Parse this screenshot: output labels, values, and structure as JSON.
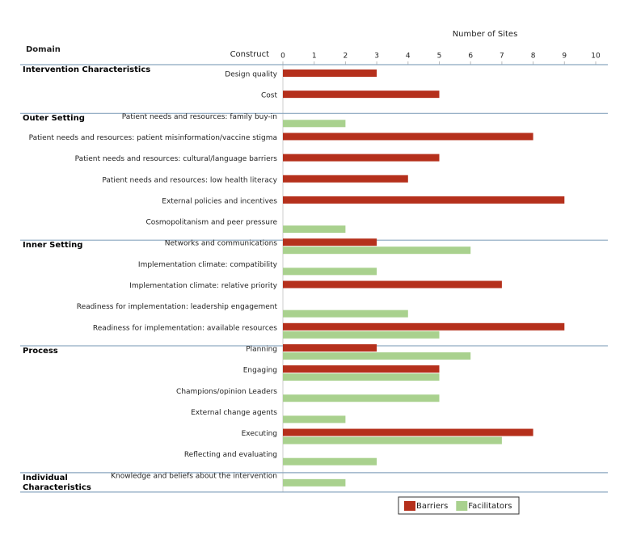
{
  "chart_data": {
    "type": "bar",
    "orientation": "horizontal",
    "title": "Number of Sites",
    "domain_header": "Domain",
    "construct_header": "Construct",
    "domains": [
      {
        "name": "Intervention Characteristics",
        "categories": [
          "Design quality",
          "Cost"
        ]
      },
      {
        "name": "Outer Setting",
        "categories": [
          "Patient needs and resources: family buy-in",
          "Patient needs and resources: patient misinformation/vaccine stigma",
          "Patient needs and resources: cultural/language barriers",
          "Patient needs and resources: low health literacy",
          "External policies and incentives",
          "Cosmopolitanism and peer pressure"
        ]
      },
      {
        "name": "Inner Setting",
        "categories": [
          "Networks and communications",
          "Implementation climate: compatibility",
          "Implementation climate: relative priority",
          "Readiness for implementation: leadership engagement",
          "Readiness for implementation: available resources"
        ]
      },
      {
        "name": "Process",
        "categories": [
          "Planning",
          "Engaging",
          "Champions/opinion Leaders",
          "External change agents",
          "Executing",
          "Reflecting and evaluating"
        ]
      },
      {
        "name": "Individual Characteristics",
        "categories": [
          "Knowledge and beliefs about the intervention"
        ]
      }
    ],
    "series": [
      {
        "name": "Barriers",
        "color": "#b5301c",
        "values": [
          3,
          5,
          null,
          8,
          5,
          4,
          9,
          null,
          3,
          null,
          7,
          null,
          9,
          3,
          5,
          null,
          null,
          8,
          null,
          null
        ]
      },
      {
        "name": "Facilitators",
        "color": "#a9d18e",
        "values": [
          null,
          null,
          2,
          null,
          null,
          null,
          null,
          2,
          6,
          3,
          null,
          4,
          5,
          6,
          5,
          5,
          2,
          7,
          3,
          2
        ]
      }
    ],
    "xlim": [
      0,
      10
    ],
    "xticks": [
      0,
      1,
      2,
      3,
      4,
      5,
      6,
      7,
      8,
      9,
      10
    ],
    "legend": "bottom"
  }
}
